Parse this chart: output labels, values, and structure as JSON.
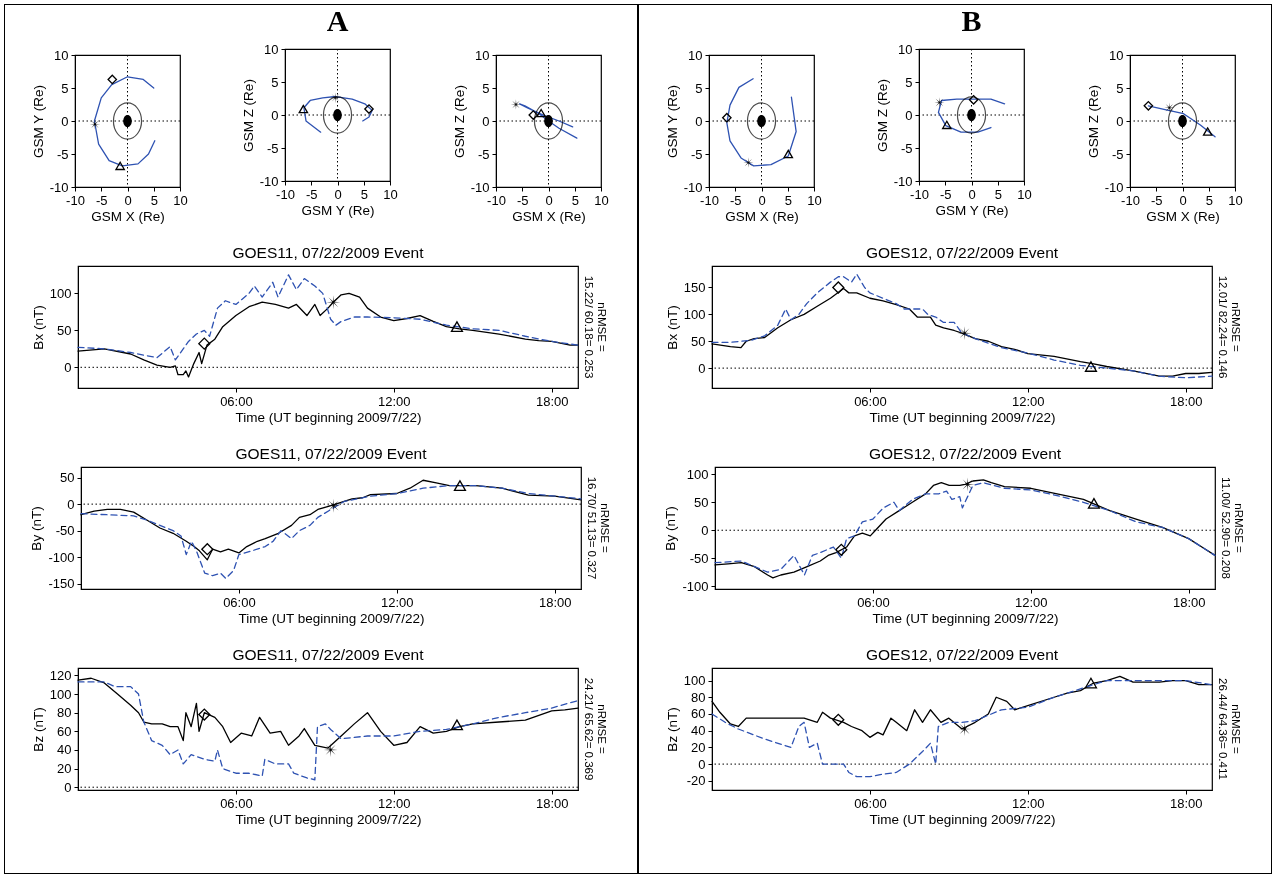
{
  "chart_data": [
    {
      "type": "line",
      "xlabel": "GSM X (Re)",
      "ylabel": "GSM Y (Re)",
      "xlim": [
        -10,
        10
      ],
      "ylim": [
        -10,
        10
      ],
      "xticks": [
        -10,
        -5,
        0,
        5,
        10
      ],
      "yticks": [
        -10,
        -5,
        0,
        5,
        10
      ],
      "ref_lines": [
        {
          "axis": "x",
          "value": 0,
          "line_style": "dotted"
        },
        {
          "axis": "y",
          "value": 0,
          "line_style": "dotted"
        }
      ],
      "series": [
        {
          "color": "#2e52b2",
          "x": [
            5,
            3,
            0,
            -3,
            -5,
            -6.3,
            -5.5,
            -3.5,
            -1,
            2,
            4,
            5.2
          ],
          "values": [
            5,
            6.3,
            6.7,
            5.5,
            3.5,
            0,
            -3.5,
            -6,
            -6.8,
            -6.5,
            -5,
            -3
          ]
        },
        {
          "type": "scatter",
          "marker": "diamond",
          "color": "#000000",
          "x": [
            -2.9
          ],
          "values": [
            6.3
          ]
        },
        {
          "type": "scatter",
          "marker": "star",
          "color": "#000000",
          "x": [
            -6.2
          ],
          "values": [
            -0.5
          ]
        },
        {
          "type": "scatter",
          "marker": "triangle",
          "color": "#000000",
          "x": [
            -1.4
          ],
          "values": [
            -6.8
          ]
        }
      ]
    },
    {
      "type": "line",
      "title": "A",
      "xlabel": "GSM Y (Re)",
      "ylabel": "GSM Z (Re)",
      "xlim": [
        -10,
        10
      ],
      "ylim": [
        -10,
        10
      ],
      "xticks": [
        -10,
        -5,
        0,
        5,
        10
      ],
      "yticks": [
        -10,
        -5,
        0,
        5,
        10
      ],
      "ref_lines": [
        {
          "axis": "x",
          "value": 0,
          "line_style": "dotted"
        },
        {
          "axis": "y",
          "value": 0,
          "line_style": "dotted"
        }
      ],
      "series": [
        {
          "color": "#2e52b2",
          "x": [
            -3.2,
            -6,
            -6.4,
            -5.2,
            -2.8,
            -0.4,
            2.8,
            5.2,
            6.6,
            6,
            4.8
          ],
          "values": [
            -2.6,
            -0.9,
            1.1,
            2.2,
            2.6,
            2.8,
            2.4,
            1.7,
            0.7,
            -0.3,
            -0.9
          ]
        },
        {
          "type": "scatter",
          "marker": "diamond",
          "color": "#000000",
          "x": [
            6
          ],
          "values": [
            0.9
          ]
        },
        {
          "type": "scatter",
          "marker": "star",
          "color": "#000000",
          "x": [
            -0.4
          ],
          "values": [
            2.6
          ]
        },
        {
          "type": "scatter",
          "marker": "triangle",
          "color": "#000000",
          "x": [
            -6.5
          ],
          "values": [
            0.9
          ]
        }
      ]
    },
    {
      "type": "line",
      "xlabel": "GSM X (Re)",
      "ylabel": "GSM Z (Re)",
      "xlim": [
        -10,
        10
      ],
      "ylim": [
        -10,
        10
      ],
      "xticks": [
        -10,
        -5,
        0,
        5,
        10
      ],
      "yticks": [
        -10,
        -5,
        0,
        5,
        10
      ],
      "ref_lines": [
        {
          "axis": "x",
          "value": 0,
          "line_style": "dotted"
        },
        {
          "axis": "y",
          "value": 0,
          "line_style": "dotted"
        }
      ],
      "series": [
        {
          "color": "#2e52b2",
          "x": [
            5.4,
            2,
            0,
            -2,
            -4.5,
            -5.5,
            -4,
            -1,
            2,
            4.6
          ],
          "values": [
            -2.6,
            -1.1,
            0,
            1.2,
            2.3,
            2.6,
            2,
            0.9,
            0,
            -0.9
          ]
        },
        {
          "type": "scatter",
          "marker": "diamond",
          "color": "#000000",
          "x": [
            -2.9
          ],
          "values": [
            0.9
          ]
        },
        {
          "type": "scatter",
          "marker": "star",
          "color": "#000000",
          "x": [
            -6.2
          ],
          "values": [
            2.5
          ]
        },
        {
          "type": "scatter",
          "marker": "triangle",
          "color": "#000000",
          "x": [
            -1.4
          ],
          "values": [
            1.2
          ]
        }
      ]
    },
    {
      "type": "line",
      "xlabel": "GSM X (Re)",
      "ylabel": "GSM Y (Re)",
      "xlim": [
        -10,
        10
      ],
      "ylim": [
        -10,
        10
      ],
      "xticks": [
        -10,
        -5,
        0,
        5,
        10
      ],
      "yticks": [
        -10,
        -5,
        0,
        5,
        10
      ],
      "ref_lines": [
        {
          "axis": "x",
          "value": 0,
          "line_style": "dotted"
        },
        {
          "axis": "y",
          "value": 0,
          "line_style": "dotted"
        }
      ],
      "series": [
        {
          "color": "#2e52b2",
          "x": [
            -1.6,
            -4.3,
            -6,
            -6.6,
            -6,
            -3.9,
            -1.5,
            1.8,
            5.1,
            6.6,
            5.7
          ],
          "values": [
            6.4,
            5.1,
            2.4,
            -0.3,
            -3,
            -5.6,
            -6.8,
            -6.6,
            -5.3,
            -1.6,
            3.6
          ]
        },
        {
          "type": "scatter",
          "marker": "diamond",
          "color": "#000000",
          "x": [
            -6.6
          ],
          "values": [
            0.5
          ]
        },
        {
          "type": "scatter",
          "marker": "star",
          "color": "#000000",
          "x": [
            -2.5
          ],
          "values": [
            -6.3
          ]
        },
        {
          "type": "scatter",
          "marker": "triangle",
          "color": "#000000",
          "x": [
            5.1
          ],
          "values": [
            -5
          ]
        }
      ]
    },
    {
      "type": "line",
      "title": "B",
      "xlabel": "GSM Y (Re)",
      "ylabel": "GSM Z (Re)",
      "xlim": [
        -10,
        10
      ],
      "ylim": [
        -10,
        10
      ],
      "xticks": [
        -10,
        -5,
        0,
        5,
        10
      ],
      "yticks": [
        -10,
        -5,
        0,
        5,
        10
      ],
      "ref_lines": [
        {
          "axis": "x",
          "value": 0,
          "line_style": "dotted"
        },
        {
          "axis": "y",
          "value": 0,
          "line_style": "dotted"
        }
      ],
      "series": [
        {
          "color": "#2e52b2",
          "x": [
            3.7,
            1.2,
            -2,
            -4.9,
            -6.3,
            -5.7,
            -2.8,
            0.4,
            3.7,
            6.3
          ],
          "values": [
            -1.9,
            -2.6,
            -2.6,
            -1.6,
            0.4,
            2.2,
            2.4,
            2.4,
            2.4,
            1.7
          ]
        },
        {
          "type": "scatter",
          "marker": "diamond",
          "color": "#000000",
          "x": [
            0.4
          ],
          "values": [
            2.3
          ]
        },
        {
          "type": "scatter",
          "marker": "star",
          "color": "#000000",
          "x": [
            -6.1
          ],
          "values": [
            1.9
          ]
        },
        {
          "type": "scatter",
          "marker": "triangle",
          "color": "#000000",
          "x": [
            -4.7
          ],
          "values": [
            -1.5
          ]
        }
      ]
    },
    {
      "type": "line",
      "xlabel": "GSM X (Re)",
      "ylabel": "GSM Z (Re)",
      "xlim": [
        -10,
        10
      ],
      "ylim": [
        -10,
        10
      ],
      "xticks": [
        -10,
        -5,
        0,
        5,
        10
      ],
      "yticks": [
        -10,
        -5,
        0,
        5,
        10
      ],
      "ref_lines": [
        {
          "axis": "x",
          "value": 0,
          "line_style": "dotted"
        },
        {
          "axis": "y",
          "value": 0,
          "line_style": "dotted"
        }
      ],
      "series": [
        {
          "color": "#2e52b2",
          "x": [
            -6.5,
            -3.1,
            0.2,
            3.4,
            6.2
          ],
          "values": [
            2.3,
            1.7,
            1.1,
            -0.6,
            -2.4
          ]
        },
        {
          "type": "scatter",
          "marker": "diamond",
          "color": "#000000",
          "x": [
            -6.5
          ],
          "values": [
            2.3
          ]
        },
        {
          "type": "scatter",
          "marker": "star",
          "color": "#000000",
          "x": [
            -2.5
          ],
          "values": [
            2
          ]
        },
        {
          "type": "scatter",
          "marker": "triangle",
          "color": "#000000",
          "x": [
            4.8
          ],
          "values": [
            -1.6
          ]
        }
      ]
    },
    {
      "type": "line",
      "title": "GOES11, 07/22/2009 Event",
      "xlabel": "Time (UT beginning 2009/7/22)",
      "ylabel": "Bx (nT)",
      "xlim": [
        0,
        19
      ],
      "ylim": [
        -28,
        137
      ],
      "xticks": [
        {
          "value": 6,
          "label": "06:00"
        },
        {
          "value": 12,
          "label": "12:00"
        },
        {
          "value": 18,
          "label": "18:00"
        }
      ],
      "yticks": [
        0,
        50,
        100
      ],
      "ref_lines": [
        {
          "axis": "y",
          "value": 0,
          "line_style": "dotted"
        }
      ],
      "annotations": [
        "nRMSE =",
        "15.22/ 60.18= 0.253"
      ],
      "series": [
        {
          "color": "#000000",
          "line_style": "solid",
          "x": [
            0,
            1,
            2,
            2.5,
            3,
            3.5,
            3.7,
            3.8,
            4,
            4.1,
            4.2,
            4.4,
            4.6,
            4.7,
            4.9,
            5.2,
            5.5,
            6,
            6.5,
            7,
            7.5,
            8,
            8.3,
            8.7,
            9,
            9.2,
            9.5,
            9.7,
            10,
            10.3,
            10.7,
            11,
            11.5,
            12,
            12.5,
            13,
            13.5,
            14,
            14.5,
            15,
            16,
            17,
            17.5,
            18,
            18.7,
            19
          ],
          "values": [
            22,
            25,
            18,
            10,
            3,
            0,
            2,
            -10,
            -10,
            -5,
            -13,
            5,
            20,
            5,
            30,
            38,
            55,
            70,
            82,
            88,
            85,
            80,
            85,
            70,
            85,
            70,
            80,
            88,
            98,
            100,
            95,
            80,
            68,
            63,
            66,
            70,
            62,
            55,
            52,
            50,
            45,
            38,
            36,
            35,
            30,
            30
          ]
        },
        {
          "color": "#2e52b2",
          "line_style": "dashed",
          "x": [
            0,
            1,
            2,
            3,
            3.5,
            3.7,
            4.2,
            4.5,
            4.8,
            5,
            5.3,
            5.6,
            6,
            6.5,
            6.7,
            7,
            7.4,
            7.6,
            8,
            8.3,
            8.6,
            9,
            9.3,
            9.6,
            9.8,
            10,
            10.5,
            11,
            12,
            13,
            14,
            15,
            16,
            17,
            18,
            19
          ],
          "values": [
            27,
            25,
            20,
            13,
            28,
            10,
            35,
            45,
            50,
            42,
            80,
            90,
            85,
            100,
            110,
            95,
            115,
            95,
            125,
            105,
            120,
            110,
            100,
            65,
            57,
            62,
            68,
            68,
            67,
            65,
            57,
            52,
            50,
            42,
            35,
            30
          ]
        },
        {
          "type": "scatter",
          "marker": "diamond",
          "color": "#000000",
          "x": [
            4.8
          ],
          "values": [
            32
          ]
        },
        {
          "type": "scatter",
          "marker": "star",
          "color": "#000000",
          "x": [
            9.7
          ],
          "values": [
            88
          ]
        },
        {
          "type": "scatter",
          "marker": "triangle",
          "color": "#000000",
          "x": [
            14.4
          ],
          "values": [
            55
          ]
        }
      ]
    },
    {
      "type": "line",
      "title": "GOES12, 07/22/2009 Event",
      "xlabel": "Time (UT beginning 2009/7/22)",
      "ylabel": "Bx (nT)",
      "xlim": [
        0,
        19
      ],
      "ylim": [
        -37,
        190
      ],
      "xticks": [
        {
          "value": 6,
          "label": "06:00"
        },
        {
          "value": 12,
          "label": "12:00"
        },
        {
          "value": 18,
          "label": "18:00"
        }
      ],
      "yticks": [
        0,
        50,
        100,
        150
      ],
      "ref_lines": [
        {
          "axis": "y",
          "value": 0,
          "line_style": "dotted"
        }
      ],
      "annotations": [
        "nRMSE =",
        "12.01/ 82.24= 0.146"
      ],
      "series": [
        {
          "color": "#000000",
          "line_style": "solid",
          "x": [
            0,
            0.7,
            1.1,
            1.3,
            1.6,
            2,
            2.5,
            3,
            3.5,
            4,
            4.5,
            5,
            5.2,
            5.5,
            6,
            6.5,
            7,
            7.5,
            7.8,
            8.3,
            8.5,
            8.8,
            9.2,
            9.5,
            10,
            10.5,
            11,
            11.5,
            12,
            13,
            14,
            14.5,
            15,
            16,
            17,
            17.5,
            18,
            18.5,
            19
          ],
          "values": [
            45,
            40,
            38,
            50,
            55,
            57,
            75,
            90,
            100,
            115,
            130,
            148,
            140,
            140,
            130,
            125,
            118,
            110,
            95,
            95,
            80,
            75,
            70,
            65,
            55,
            50,
            40,
            35,
            27,
            22,
            12,
            8,
            3,
            -5,
            -15,
            -15,
            -10,
            -10,
            -8
          ]
        },
        {
          "color": "#2e52b2",
          "line_style": "dashed",
          "x": [
            0,
            0.7,
            1.5,
            2,
            2.5,
            2.8,
            3,
            3.3,
            3.6,
            4,
            4.5,
            4.8,
            5,
            5.3,
            5.5,
            5.8,
            6,
            6.5,
            7,
            7.3,
            7.8,
            8,
            8.2,
            8.5,
            8.8,
            9.2,
            9.5,
            10,
            11,
            12,
            13,
            14,
            15,
            16,
            17,
            18,
            19
          ],
          "values": [
            48,
            48,
            52,
            60,
            80,
            110,
            90,
            100,
            120,
            140,
            160,
            170,
            170,
            160,
            175,
            150,
            140,
            130,
            120,
            110,
            110,
            110,
            100,
            95,
            85,
            85,
            65,
            55,
            38,
            28,
            15,
            5,
            0,
            -5,
            -15,
            -18,
            -15
          ]
        },
        {
          "type": "scatter",
          "marker": "diamond",
          "color": "#000000",
          "x": [
            4.8
          ],
          "values": [
            150
          ]
        },
        {
          "type": "scatter",
          "marker": "star",
          "color": "#000000",
          "x": [
            9.6
          ],
          "values": [
            65
          ]
        },
        {
          "type": "scatter",
          "marker": "triangle",
          "color": "#000000",
          "x": [
            14.4
          ],
          "values": [
            3
          ]
        }
      ]
    },
    {
      "type": "line",
      "title": "GOES11, 07/22/2009 Event",
      "xlabel": "Time (UT beginning 2009/7/22)",
      "ylabel": "By (nT)",
      "xlim": [
        0,
        19
      ],
      "ylim": [
        -160,
        70
      ],
      "xticks": [
        {
          "value": 6,
          "label": "06:00"
        },
        {
          "value": 12,
          "label": "12:00"
        },
        {
          "value": 18,
          "label": "18:00"
        }
      ],
      "yticks": [
        -150,
        -100,
        -50,
        0,
        50
      ],
      "ref_lines": [
        {
          "axis": "y",
          "value": 0,
          "line_style": "dotted"
        }
      ],
      "annotations": [
        "nRMSE =",
        "16.70/ 51.13= 0.327"
      ],
      "series": [
        {
          "color": "#000000",
          "line_style": "solid",
          "x": [
            0,
            0.5,
            1,
            1.5,
            2,
            2.5,
            3,
            3.5,
            4,
            4.3,
            4.5,
            4.8,
            5,
            5.3,
            5.6,
            6,
            6.3,
            6.7,
            7,
            7.5,
            8,
            8.3,
            8.7,
            9,
            9.5,
            10,
            10.3,
            10.7,
            11,
            12,
            12.5,
            13,
            13.5,
            14,
            15,
            16,
            17,
            18,
            19
          ],
          "values": [
            -20,
            -13,
            -10,
            -10,
            -15,
            -30,
            -45,
            -55,
            -70,
            -80,
            -88,
            -105,
            -85,
            -90,
            -85,
            -92,
            -80,
            -70,
            -65,
            -55,
            -40,
            -25,
            -20,
            -10,
            -3,
            5,
            10,
            12,
            18,
            20,
            30,
            45,
            40,
            35,
            35,
            30,
            17,
            15,
            8
          ]
        },
        {
          "color": "#2e52b2",
          "line_style": "dashed",
          "x": [
            0,
            1,
            2,
            2.5,
            3,
            3.5,
            3.8,
            4,
            4.2,
            4.4,
            4.7,
            5,
            5.3,
            5.5,
            5.8,
            6,
            6.5,
            7,
            7.3,
            7.6,
            8,
            8.3,
            8.7,
            9,
            9.5,
            10,
            11,
            12,
            13,
            14,
            15,
            16,
            17,
            18,
            19
          ],
          "values": [
            -18,
            -20,
            -22,
            -30,
            -40,
            -50,
            -60,
            -95,
            -70,
            -90,
            -130,
            -135,
            -130,
            -140,
            -125,
            -95,
            -88,
            -80,
            -70,
            -50,
            -65,
            -50,
            -40,
            -25,
            -10,
            5,
            15,
            20,
            30,
            35,
            35,
            30,
            20,
            15,
            10
          ]
        },
        {
          "type": "scatter",
          "marker": "diamond",
          "color": "#000000",
          "x": [
            4.8
          ],
          "values": [
            -85
          ]
        },
        {
          "type": "scatter",
          "marker": "star",
          "color": "#000000",
          "x": [
            9.6
          ],
          "values": [
            -3
          ]
        },
        {
          "type": "scatter",
          "marker": "triangle",
          "color": "#000000",
          "x": [
            14.4
          ],
          "values": [
            35
          ]
        }
      ]
    },
    {
      "type": "line",
      "title": "GOES12, 07/22/2009 Event",
      "xlabel": "Time (UT beginning 2009/7/22)",
      "ylabel": "By (nT)",
      "xlim": [
        0,
        19
      ],
      "ylim": [
        -105,
        113
      ],
      "xticks": [
        {
          "value": 6,
          "label": "06:00"
        },
        {
          "value": 12,
          "label": "12:00"
        },
        {
          "value": 18,
          "label": "18:00"
        }
      ],
      "yticks": [
        -100,
        -50,
        0,
        50,
        100
      ],
      "ref_lines": [
        {
          "axis": "y",
          "value": 0,
          "line_style": "dotted"
        }
      ],
      "annotations": [
        "nRMSE =",
        "11.00/ 52.90= 0.208"
      ],
      "series": [
        {
          "color": "#000000",
          "line_style": "solid",
          "x": [
            0,
            0.5,
            1,
            1.5,
            2,
            2.2,
            2.5,
            3,
            3.5,
            4,
            4.3,
            4.6,
            5,
            5.3,
            5.6,
            5.9,
            6.1,
            6.5,
            7,
            7.5,
            8,
            8.3,
            8.6,
            8.9,
            9.3,
            9.5,
            9.8,
            10.2,
            10.5,
            11,
            12,
            13,
            14,
            15,
            16,
            17,
            18,
            18.5,
            19
          ],
          "values": [
            -62,
            -60,
            -58,
            -65,
            -80,
            -85,
            -80,
            -75,
            -65,
            -55,
            -45,
            -40,
            -30,
            -10,
            -5,
            -10,
            0,
            20,
            35,
            50,
            65,
            80,
            85,
            80,
            80,
            82,
            88,
            90,
            85,
            78,
            75,
            65,
            55,
            35,
            20,
            5,
            -15,
            -30,
            -45
          ]
        },
        {
          "color": "#2e52b2",
          "line_style": "dashed",
          "x": [
            0,
            1,
            2,
            2.5,
            3,
            3.4,
            3.7,
            4,
            4.5,
            4.8,
            5,
            5.3,
            5.6,
            6,
            6.4,
            6.8,
            7,
            7.5,
            8,
            8.5,
            8.8,
            9,
            9.3,
            9.4,
            9.8,
            10.2,
            11,
            12,
            13,
            14,
            15,
            16,
            17,
            18,
            19
          ],
          "values": [
            -58,
            -55,
            -75,
            -70,
            -45,
            -80,
            -45,
            -40,
            -30,
            -50,
            -15,
            -10,
            15,
            20,
            40,
            50,
            35,
            55,
            65,
            65,
            70,
            55,
            60,
            40,
            80,
            85,
            75,
            72,
            62,
            50,
            35,
            15,
            5,
            -15,
            -45
          ]
        },
        {
          "type": "scatter",
          "marker": "diamond",
          "color": "#000000",
          "x": [
            4.8
          ],
          "values": [
            -35
          ]
        },
        {
          "type": "scatter",
          "marker": "star",
          "color": "#000000",
          "x": [
            9.6
          ],
          "values": [
            82
          ]
        },
        {
          "type": "scatter",
          "marker": "triangle",
          "color": "#000000",
          "x": [
            14.4
          ],
          "values": [
            48
          ]
        }
      ]
    },
    {
      "type": "line",
      "title": "GOES11, 07/22/2009 Event",
      "xlabel": "Time (UT beginning 2009/7/22)",
      "ylabel": "Bz (nT)",
      "xlim": [
        0,
        19
      ],
      "ylim": [
        -3,
        128
      ],
      "xticks": [
        {
          "value": 6,
          "label": "06:00"
        },
        {
          "value": 12,
          "label": "12:00"
        },
        {
          "value": 18,
          "label": "18:00"
        }
      ],
      "yticks": [
        0,
        20,
        40,
        60,
        80,
        100,
        120
      ],
      "ref_lines": [
        {
          "axis": "y",
          "value": 0,
          "line_style": "dotted"
        }
      ],
      "annotations": [
        "nRMSE =",
        "24.21/ 65.62= 0.369"
      ],
      "series": [
        {
          "color": "#000000",
          "line_style": "solid",
          "x": [
            0,
            0.5,
            1,
            1.5,
            2,
            2.3,
            2.5,
            2.8,
            3.2,
            3.5,
            3.8,
            4,
            4.1,
            4.3,
            4.5,
            4.6,
            4.8,
            5.2,
            5.5,
            5.8,
            6.2,
            6.6,
            6.9,
            7.3,
            7.7,
            8,
            8.4,
            8.6,
            9,
            9.5,
            10,
            10.5,
            11,
            11.5,
            12,
            12.5,
            13,
            13.5,
            14,
            14.5,
            15,
            16,
            17,
            18,
            18.5,
            19
          ],
          "values": [
            115,
            117,
            112,
            100,
            88,
            80,
            70,
            68,
            68,
            65,
            65,
            50,
            80,
            65,
            90,
            60,
            80,
            75,
            65,
            48,
            58,
            55,
            75,
            58,
            60,
            45,
            55,
            63,
            45,
            42,
            55,
            68,
            80,
            60,
            45,
            48,
            65,
            58,
            60,
            65,
            68,
            70,
            72,
            82,
            83,
            85
          ]
        },
        {
          "color": "#2e52b2",
          "line_style": "dashed",
          "x": [
            0,
            1,
            1.4,
            2,
            2.3,
            2.5,
            2.8,
            3.2,
            3.5,
            3.8,
            4,
            4.3,
            4.8,
            5.2,
            5.3,
            5.5,
            6,
            6.5,
            7,
            7.1,
            7.5,
            8,
            8.2,
            8.7,
            9,
            9.1,
            9.4,
            9.6,
            10,
            11,
            12,
            13,
            14,
            15,
            16,
            17,
            18,
            19
          ],
          "values": [
            113,
            113,
            108,
            108,
            100,
            70,
            50,
            45,
            35,
            40,
            25,
            35,
            30,
            28,
            40,
            20,
            15,
            15,
            12,
            30,
            25,
            25,
            15,
            10,
            8,
            65,
            68,
            62,
            52,
            55,
            55,
            60,
            62,
            68,
            75,
            80,
            85,
            93
          ]
        },
        {
          "type": "scatter",
          "marker": "diamond",
          "color": "#000000",
          "x": [
            4.8
          ],
          "values": [
            78
          ]
        },
        {
          "type": "scatter",
          "marker": "star",
          "color": "#000000",
          "x": [
            9.6
          ],
          "values": [
            40
          ]
        },
        {
          "type": "scatter",
          "marker": "triangle",
          "color": "#000000",
          "x": [
            14.4
          ],
          "values": [
            67
          ]
        }
      ]
    },
    {
      "type": "line",
      "title": "GOES12, 07/22/2009 Event",
      "xlabel": "Time (UT beginning 2009/7/22)",
      "ylabel": "Bz (nT)",
      "xlim": [
        0,
        19
      ],
      "ylim": [
        -31,
        115
      ],
      "xticks": [
        {
          "value": 6,
          "label": "06:00"
        },
        {
          "value": 12,
          "label": "12:00"
        },
        {
          "value": 18,
          "label": "18:00"
        }
      ],
      "yticks": [
        -20,
        0,
        20,
        40,
        60,
        80,
        100
      ],
      "ref_lines": [
        {
          "axis": "y",
          "value": 0,
          "line_style": "dotted"
        }
      ],
      "annotations": [
        "nRMSE =",
        "26.44/ 64.36= 0.411"
      ],
      "series": [
        {
          "color": "#000000",
          "line_style": "solid",
          "x": [
            0,
            0.3,
            0.7,
            1,
            1.3,
            2,
            3,
            3.5,
            4,
            4.2,
            4.5,
            5,
            5.3,
            5.7,
            6,
            6.3,
            6.5,
            6.8,
            7,
            7.4,
            7.7,
            8,
            8.3,
            8.7,
            9,
            9.5,
            10,
            10.5,
            10.8,
            11.2,
            11.5,
            12,
            13,
            13.5,
            14,
            14.5,
            15,
            15.5,
            16,
            17,
            17.5,
            18,
            18.5,
            19
          ],
          "values": [
            75,
            62,
            48,
            45,
            55,
            55,
            55,
            55,
            50,
            62,
            55,
            50,
            45,
            40,
            32,
            38,
            35,
            55,
            50,
            40,
            65,
            50,
            65,
            50,
            55,
            42,
            50,
            60,
            80,
            75,
            65,
            70,
            80,
            85,
            88,
            97,
            100,
            105,
            98,
            98,
            100,
            100,
            95,
            95
          ]
        },
        {
          "color": "#2e52b2",
          "line_style": "dashed",
          "x": [
            0,
            0.5,
            1,
            2,
            3,
            3.3,
            3.5,
            3.7,
            4,
            4.2,
            5,
            5.2,
            5.5,
            6,
            6.5,
            7,
            7.5,
            8,
            8.3,
            8.5,
            8.6,
            9,
            9.5,
            10,
            11,
            12,
            13,
            14,
            15,
            16,
            17,
            18,
            19
          ],
          "values": [
            60,
            50,
            42,
            30,
            20,
            45,
            50,
            20,
            25,
            0,
            0,
            -10,
            -15,
            -15,
            -12,
            -10,
            0,
            15,
            25,
            0,
            45,
            50,
            50,
            52,
            65,
            68,
            80,
            90,
            100,
            100,
            100,
            100,
            95
          ]
        },
        {
          "type": "scatter",
          "marker": "diamond",
          "color": "#000000",
          "x": [
            4.8
          ],
          "values": [
            53
          ]
        },
        {
          "type": "scatter",
          "marker": "star",
          "color": "#000000",
          "x": [
            9.6
          ],
          "values": [
            42
          ]
        },
        {
          "type": "scatter",
          "marker": "triangle",
          "color": "#000000",
          "x": [
            14.4
          ],
          "values": [
            97
          ]
        }
      ]
    }
  ]
}
